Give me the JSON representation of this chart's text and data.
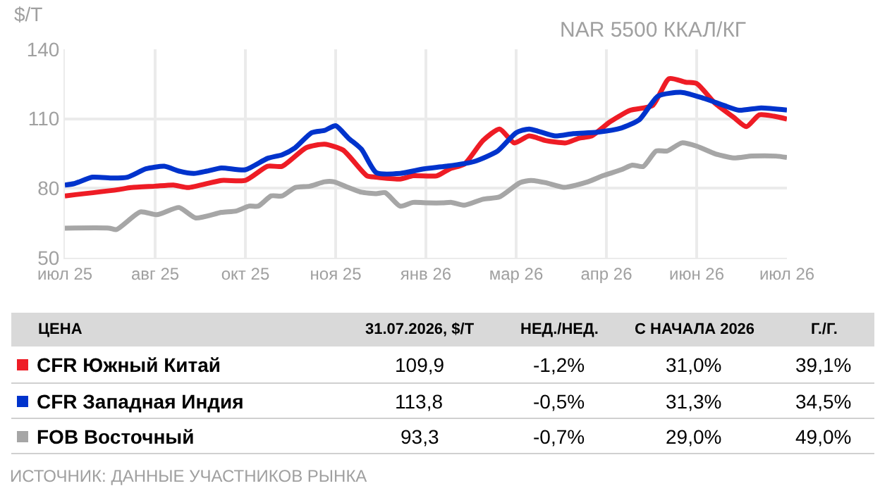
{
  "chart_data": {
    "type": "line",
    "title": "NAR 5500 ККАЛ/КГ",
    "ylabel": "$/T",
    "xlim": [
      "2025-07-04",
      "2026-07-31"
    ],
    "xticks": [
      {
        "value": "2025-07-04",
        "label": "июл 25"
      },
      {
        "value": "2025-08-22",
        "label": "авг 25"
      },
      {
        "value": "2025-10-10",
        "label": "окт 25"
      },
      {
        "value": "2025-11-28",
        "label": "ноя 25"
      },
      {
        "value": "2026-01-16",
        "label": "янв 26"
      },
      {
        "value": "2026-03-06",
        "label": "мар 26"
      },
      {
        "value": "2026-04-24",
        "label": "апр 26"
      },
      {
        "value": "2026-06-12",
        "label": "июн 26"
      },
      {
        "value": "2026-07-31",
        "label": "июл 26"
      }
    ],
    "ylim": [
      50,
      140
    ],
    "yticks": [
      50,
      80,
      110,
      140
    ],
    "grid": true,
    "legend": "bottom",
    "marker": "none",
    "line_style": "solid",
    "series": [
      {
        "name": "CFR Южный Китай",
        "color": "#ee1c25",
        "x": [
          "2025-07-04",
          "2025-08-01",
          "2025-08-09",
          "2025-08-22",
          "2025-09-01",
          "2025-09-09",
          "2025-09-27",
          "2025-10-10",
          "2025-10-22",
          "2025-10-30",
          "2025-11-12",
          "2025-11-22",
          "2025-12-02",
          "2025-12-15",
          "2025-12-20",
          "2026-01-02",
          "2026-01-09",
          "2026-01-22",
          "2026-01-29",
          "2026-02-06",
          "2026-02-16",
          "2026-02-25",
          "2026-03-05",
          "2026-03-13",
          "2026-03-22",
          "2026-04-02",
          "2026-04-09",
          "2026-04-16",
          "2026-04-26",
          "2026-05-07",
          "2026-05-19",
          "2026-05-28",
          "2026-06-06",
          "2026-06-12",
          "2026-06-22",
          "2026-07-02",
          "2026-07-09",
          "2026-07-16",
          "2026-07-24",
          "2026-07-31"
        ],
        "values": [
          76.7,
          79.3,
          80.3,
          80.9,
          81.4,
          80.3,
          83.4,
          83.4,
          89.5,
          89.5,
          97.5,
          99,
          96.5,
          85.4,
          84.8,
          84,
          85.4,
          85.4,
          88.4,
          90.5,
          100.6,
          105.6,
          99.6,
          102.6,
          100.6,
          99.6,
          101.6,
          102.6,
          108.7,
          113.7,
          115.7,
          127.3,
          125.8,
          125.2,
          116.7,
          110.7,
          106.6,
          111.7,
          111.1,
          109.9
        ]
      },
      {
        "name": "CFR Западная Индия",
        "color": "#0033cc",
        "x": [
          "2025-07-04",
          "2025-07-09",
          "2025-07-19",
          "2025-07-30",
          "2025-08-07",
          "2025-08-17",
          "2025-08-27",
          "2025-09-04",
          "2025-09-12",
          "2025-09-19",
          "2025-09-27",
          "2025-10-10",
          "2025-10-22",
          "2025-10-30",
          "2025-11-06",
          "2025-11-15",
          "2025-11-22",
          "2025-11-28",
          "2025-12-05",
          "2025-12-12",
          "2025-12-20",
          "2026-01-02",
          "2026-01-15",
          "2026-01-27",
          "2026-02-11",
          "2026-02-24",
          "2026-03-06",
          "2026-03-13",
          "2026-03-27",
          "2026-04-06",
          "2026-04-19",
          "2026-05-02",
          "2026-05-12",
          "2026-05-22",
          "2026-06-04",
          "2026-06-16",
          "2026-06-27",
          "2026-07-05",
          "2026-07-17",
          "2026-07-31"
        ],
        "values": [
          81.4,
          82,
          84.8,
          84.4,
          84.8,
          88.4,
          89.5,
          87.4,
          86.4,
          87.4,
          88.8,
          88,
          92.9,
          94.5,
          97.5,
          104,
          105,
          107,
          101.6,
          96.9,
          86.8,
          86.4,
          88.4,
          89.5,
          91.5,
          96.1,
          104,
          105.6,
          102.6,
          103.6,
          104.2,
          106,
          109.7,
          119.8,
          121.4,
          118.8,
          115.7,
          113.7,
          114.7,
          113.8
        ]
      },
      {
        "name": "FOB Восточный",
        "color": "#a6a6a6",
        "x": [
          "2025-07-04",
          "2025-07-28",
          "2025-08-01",
          "2025-08-14",
          "2025-08-23",
          "2025-09-04",
          "2025-09-13",
          "2025-09-27",
          "2025-10-05",
          "2025-10-12",
          "2025-10-17",
          "2025-10-24",
          "2025-10-30",
          "2025-11-06",
          "2025-11-14",
          "2025-11-22",
          "2025-11-27",
          "2025-12-05",
          "2025-12-12",
          "2025-12-20",
          "2025-12-25",
          "2026-01-02",
          "2026-01-09",
          "2026-01-17",
          "2026-01-25",
          "2026-01-30",
          "2026-02-06",
          "2026-02-16",
          "2026-02-25",
          "2026-03-08",
          "2026-03-14",
          "2026-03-22",
          "2026-04-01",
          "2026-04-14",
          "2026-04-22",
          "2026-05-02",
          "2026-05-08",
          "2026-05-14",
          "2026-05-21",
          "2026-05-27",
          "2026-06-04",
          "2026-06-12",
          "2026-06-22",
          "2026-07-02",
          "2026-07-12",
          "2026-07-25",
          "2026-07-31"
        ],
        "values": [
          62.8,
          62.8,
          62.2,
          69.8,
          68.6,
          71.7,
          67.2,
          69.6,
          70.2,
          72.3,
          72.3,
          76.7,
          76.7,
          80.3,
          80.9,
          82.8,
          82.8,
          80.3,
          78.3,
          77.7,
          78.1,
          72.3,
          73.9,
          73.7,
          73.7,
          73.9,
          72.7,
          75.3,
          76.3,
          82.4,
          83.4,
          82.4,
          80.4,
          82.8,
          85.4,
          88,
          90,
          89.4,
          96.1,
          96.1,
          99.6,
          98.2,
          94.9,
          93.1,
          93.9,
          93.9,
          93.3
        ]
      }
    ],
    "annotations": [
      "ЦЕНА",
      "31.07.2026, $/T",
      "НЕД./НЕД.",
      "С НАЧАЛА 2026",
      "Г./Г.",
      "109,9",
      "-1,2%",
      "31,0%",
      "39,1%",
      "113,8",
      "-0,5%",
      "31,3%",
      "34,5%",
      "93,3",
      "-0,7%",
      "29,0%",
      "49,0%",
      "ИСТОЧНИК: ДАННЫЕ УЧАСТНИКОВ РЫНКА"
    ]
  }
}
